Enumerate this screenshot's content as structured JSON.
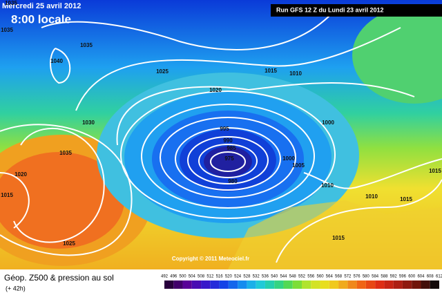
{
  "header": {
    "date": "Mercredi 25 avril 2012",
    "time": "8:00 locale"
  },
  "run_info": "Run GFS 12 Z du Lundi 23 avril 2012",
  "copyright": "Copyright © 2011 Meteociel.fr",
  "isobar_labels": [
    "1035",
    "1035",
    "1040",
    "1035",
    "1025",
    "1020",
    "1015",
    "1010",
    "1030",
    "1035",
    "1020",
    "1015",
    "1025",
    "995",
    "990",
    "985",
    "975",
    "980",
    "1000",
    "1000",
    "1005",
    "1010",
    "1010",
    "1015",
    "1015",
    "1015"
  ],
  "legend": {
    "title": "Géop. Z500 & pression au sol",
    "lead_time": "(+ 42h)",
    "scale": [
      492,
      496,
      500,
      504,
      508,
      512,
      516,
      520,
      524,
      528,
      532,
      536,
      540,
      544,
      548,
      552,
      556,
      560,
      564,
      568,
      572,
      576,
      580,
      584,
      588,
      592,
      596,
      600,
      604,
      608,
      612
    ]
  }
}
